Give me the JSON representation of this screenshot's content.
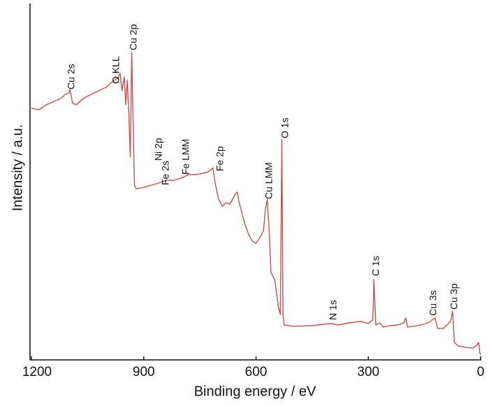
{
  "chart_data": {
    "type": "line",
    "x_label": "Binding energy / eV",
    "y_label": "Intensity / a.u.",
    "xlim": [
      1200,
      0
    ],
    "xticks": [
      1200,
      900,
      600,
      300,
      0
    ],
    "ylim": [
      0,
      100
    ],
    "color": "#c8504b",
    "x": [
      1200,
      1180,
      1160,
      1140,
      1120,
      1110,
      1100,
      1097,
      1090,
      1080,
      1060,
      1040,
      1020,
      1000,
      990,
      980,
      970,
      963,
      958,
      952,
      948,
      944,
      940,
      936,
      932,
      928,
      925,
      920,
      900,
      880,
      860,
      840,
      820,
      800,
      780,
      760,
      740,
      725,
      715,
      710,
      700,
      690,
      680,
      670,
      655,
      650,
      645,
      640,
      630,
      620,
      610,
      600,
      590,
      580,
      575,
      570,
      565,
      560,
      555,
      550,
      540,
      535,
      531,
      528,
      525,
      500,
      450,
      400,
      380,
      350,
      320,
      300,
      288,
      285,
      280,
      270,
      260,
      240,
      220,
      205,
      200,
      195,
      180,
      160,
      140,
      122,
      115,
      100,
      80,
      75,
      70,
      60,
      40,
      20,
      10,
      5,
      2,
      0
    ],
    "values": [
      70.6,
      70.2,
      71.6,
      72.5,
      73.5,
      74.5,
      74.9,
      75.9,
      72.0,
      71.6,
      73.5,
      74.5,
      75.5,
      76.5,
      77.5,
      78.4,
      79.0,
      80.4,
      75.5,
      79.4,
      71.6,
      78.4,
      69.6,
      56.9,
      86.3,
      65.7,
      49.0,
      48.0,
      48.4,
      49.0,
      49.6,
      50.4,
      50.4,
      51.0,
      52.0,
      52.0,
      52.4,
      52.9,
      53.9,
      50.0,
      45.1,
      43.1,
      44.1,
      43.7,
      46.5,
      47.1,
      44.1,
      42.2,
      38.2,
      35.3,
      33.3,
      32.7,
      34.3,
      36.3,
      42.2,
      45.1,
      36.3,
      24.5,
      23.5,
      22.5,
      14.7,
      12.7,
      61.8,
      12.7,
      9.8,
      9.4,
      9.6,
      10.2,
      9.8,
      10.4,
      10.8,
      10.2,
      11.2,
      22.5,
      9.8,
      10.4,
      9.2,
      9.6,
      9.8,
      10.4,
      11.8,
      9.2,
      9.4,
      9.8,
      10.4,
      11.8,
      8.8,
      8.8,
      10.8,
      13.7,
      4.9,
      3.9,
      3.5,
      3.3,
      4.1,
      4.9,
      2.0,
      1.4
    ],
    "annotations": [
      "Cu 2s",
      "O KLL",
      "Cu 2p",
      "Ni 2p",
      "Fe 2s",
      "Fe LMM",
      "Fe 2p",
      "Cu LMM",
      "O 1s",
      "N 1s",
      "C 1s",
      "Cu 3s",
      "Cu 3p"
    ]
  }
}
